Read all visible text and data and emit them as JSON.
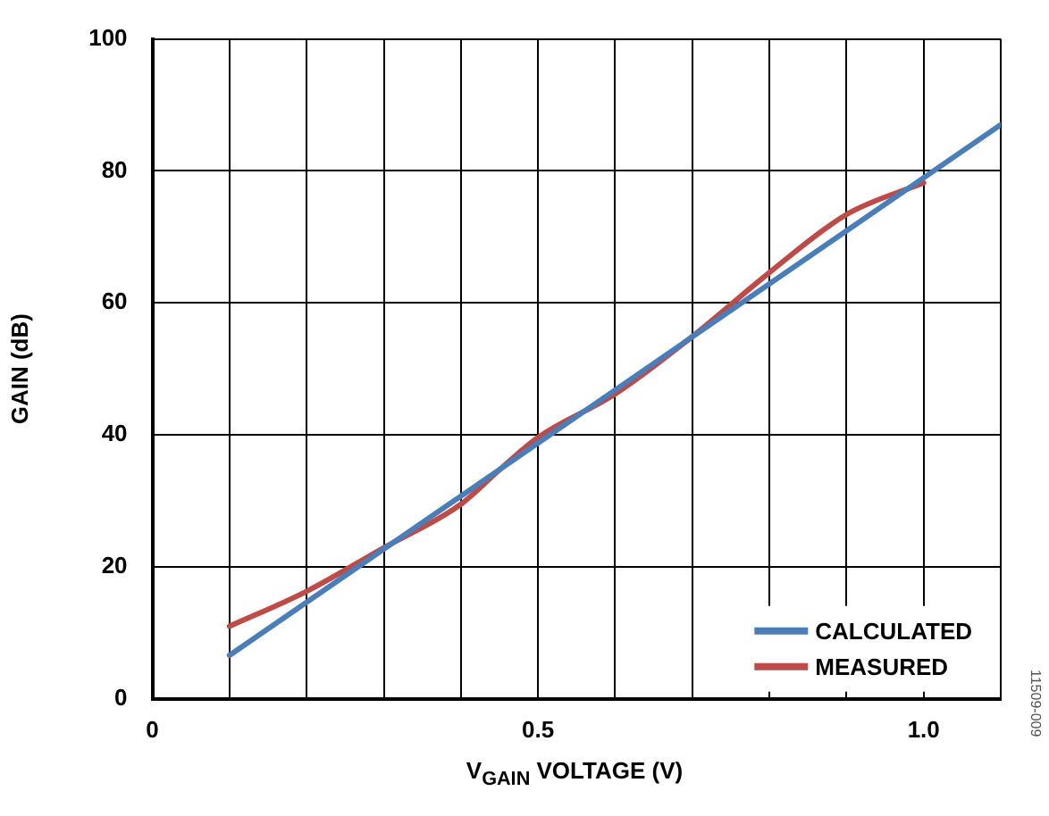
{
  "chart_data": {
    "type": "line",
    "xlabel": "V$_{GAIN}$ VOLTAGE (V)",
    "ylabel": "GAIN (dB)",
    "annotations": [
      "11509-009"
    ],
    "xlim": [
      0,
      1.1
    ],
    "xticks": [
      0,
      {
        "value": 0.1,
        "label": null
      },
      {
        "value": 0.2,
        "label": null
      },
      {
        "value": 0.3,
        "label": null
      },
      {
        "value": 0.4,
        "label": null
      },
      0.5,
      {
        "value": 0.6,
        "label": null
      },
      {
        "value": 0.7,
        "label": null
      },
      {
        "value": 0.8,
        "label": null
      },
      {
        "value": 0.9,
        "label": null
      },
      {
        "value": 1,
        "label": "1.0"
      },
      {
        "value": 1.1,
        "label": null
      }
    ],
    "ylim": [
      0,
      100
    ],
    "yticks": [
      0,
      20,
      40,
      60,
      80,
      100
    ],
    "grid": true,
    "legend": "bottom right",
    "line_style": "solid",
    "marker": "none",
    "series": [
      {
        "name": "CALCULATED",
        "color": "#4a7ebb",
        "x": [
          0.1,
          1.1
        ],
        "values": [
          6.6,
          87.0
        ]
      },
      {
        "name": "MEASURED",
        "color": "#be4b48",
        "x": [
          0.1,
          0.2,
          0.3,
          0.4,
          0.45,
          0.5,
          0.6,
          0.7,
          0.8,
          0.9,
          1.0
        ],
        "values": [
          11.0,
          16.3,
          22.9,
          29.5,
          34.7,
          39.6,
          46.2,
          54.9,
          64.6,
          73.4,
          78.2
        ]
      }
    ]
  }
}
